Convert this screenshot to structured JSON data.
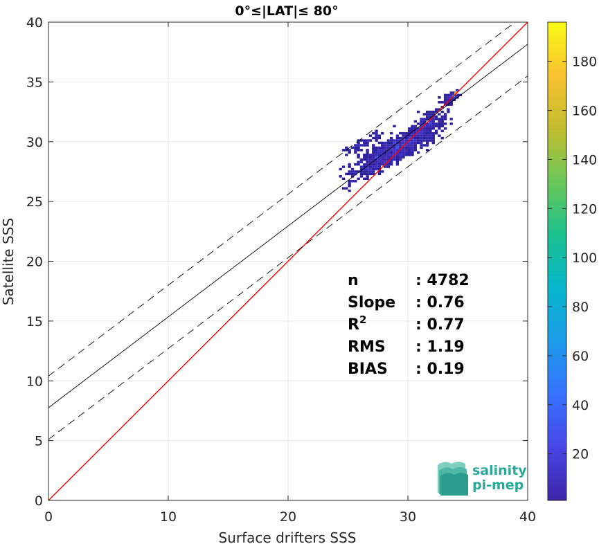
{
  "chart_data": {
    "type": "heatmap",
    "title": "0°≤|LAT|≤ 80°",
    "xlabel": "Surface drifters SSS",
    "ylabel": "Satellite SSS",
    "xlim": [
      0,
      40
    ],
    "ylim": [
      0,
      40
    ],
    "xticks": [
      "0",
      "10",
      "20",
      "30",
      "40"
    ],
    "yticks": [
      "0",
      "5",
      "10",
      "15",
      "20",
      "25",
      "30",
      "35",
      "40"
    ],
    "grid": true,
    "lines": [
      {
        "name": "identity",
        "slope": 1.0,
        "intercept": 0.0,
        "color": "#ff0000",
        "style": "solid"
      },
      {
        "name": "regression",
        "slope": 0.76,
        "intercept": 7.75,
        "color": "#000000",
        "style": "solid"
      },
      {
        "name": "upper",
        "slope": 0.76,
        "intercept": 10.4,
        "color": "#000000",
        "style": "dashed"
      },
      {
        "name": "lower",
        "slope": 0.76,
        "intercept": 5.1,
        "color": "#000000",
        "style": "dashed"
      }
    ],
    "density_clusters": [
      {
        "x": 29.5,
        "y": 29.6,
        "sx": 1.6,
        "sy": 0.9,
        "n": 700
      },
      {
        "x": 27.5,
        "y": 28.6,
        "sx": 1.3,
        "sy": 0.9,
        "n": 260
      },
      {
        "x": 31.5,
        "y": 31.5,
        "sx": 0.7,
        "sy": 0.7,
        "n": 160
      },
      {
        "x": 33.5,
        "y": 33.6,
        "sx": 0.4,
        "sy": 0.4,
        "n": 60
      },
      {
        "x": 26.3,
        "y": 29.9,
        "sx": 0.9,
        "sy": 0.4,
        "n": 60
      }
    ],
    "peak": {
      "x": 34.0,
      "y": 34.0
    },
    "colorbar": {
      "range": [
        1,
        196
      ],
      "ticks": [
        "20",
        "40",
        "60",
        "80",
        "100",
        "120",
        "140",
        "160",
        "180"
      ],
      "colors": [
        "#3e26a8",
        "#4745e5",
        "#3573ff",
        "#1c9be7",
        "#06b6cc",
        "#1bc18e",
        "#6bc858",
        "#c2bd2f",
        "#f9c12f",
        "#f9fb15"
      ]
    }
  },
  "stats": [
    {
      "label": "n",
      "value": ": 4782"
    },
    {
      "label": "Slope",
      "value": ": 0.76"
    },
    {
      "label": "R",
      "sup": "2",
      "value": ": 0.77"
    },
    {
      "label": "RMS",
      "value": ": 1.19"
    },
    {
      "label": "BIAS",
      "value": ": 0.19"
    }
  ],
  "logo": {
    "line1": "salinity",
    "line2": "pi-mep"
  }
}
